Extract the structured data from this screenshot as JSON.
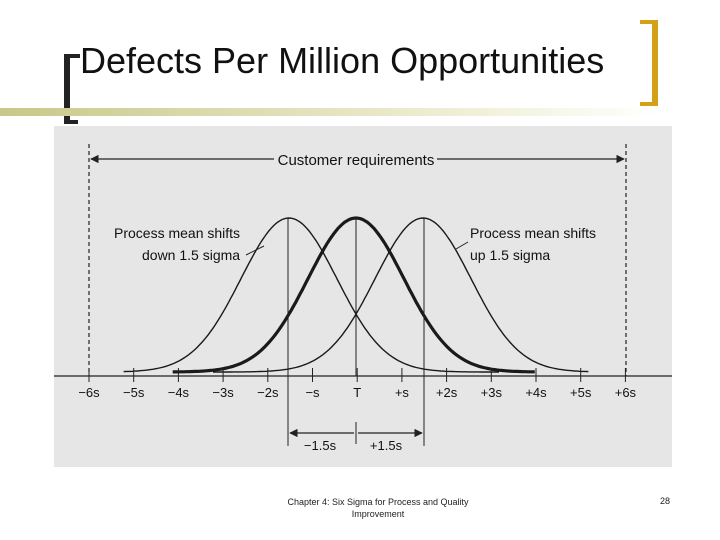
{
  "slide": {
    "title": "Defects Per Million Opportunities",
    "footer": "Chapter 4: Six Sigma for Process and Quality Improvement",
    "page_number": "28"
  },
  "diagram": {
    "customer_requirements": "Customer requirements",
    "label_down": [
      "Process mean shifts",
      "down 1.5 sigma"
    ],
    "label_up": [
      "Process mean shifts",
      "up 1.5 sigma"
    ],
    "ticks": [
      "−6s",
      "−5s",
      "−4s",
      "−3s",
      "−2s",
      "−s",
      "T",
      "+s",
      "+2s",
      "+3s",
      "+4s",
      "+5s",
      "+6s"
    ],
    "shift_minus": "−1.5s",
    "shift_plus": "+1.5s"
  },
  "colors": {
    "accent": "#d4a017",
    "bar": "#c8c88a",
    "curve": "#1a1a1a"
  }
}
